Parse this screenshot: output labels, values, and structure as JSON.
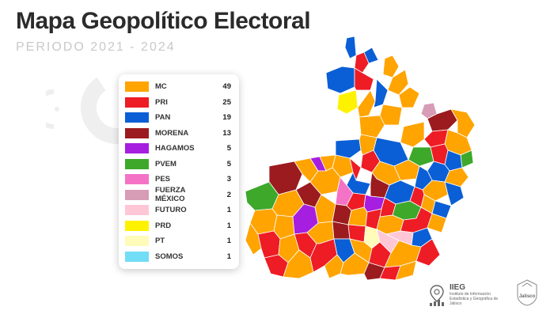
{
  "header": {
    "title": "Mapa Geopolítico Electoral",
    "subtitle": "PERIODO 2021 - 2024"
  },
  "legend": [
    {
      "label": "MC",
      "value": "49",
      "color": "#FFA400"
    },
    {
      "label": "PRI",
      "value": "25",
      "color": "#EE1C25"
    },
    {
      "label": "PAN",
      "value": "19",
      "color": "#0A5FD6"
    },
    {
      "label": "MORENA",
      "value": "13",
      "color": "#9B1B1E"
    },
    {
      "label": "HAGAMOS",
      "value": "5",
      "color": "#A61EE0"
    },
    {
      "label": "PVEM",
      "value": "5",
      "color": "#3DA82A"
    },
    {
      "label": "PES",
      "value": "3",
      "color": "#F573C6"
    },
    {
      "label": "FUERZA MÉXICO",
      "value": "2",
      "color": "#D79CB6"
    },
    {
      "label": "FUTURO",
      "value": "1",
      "color": "#FFC6D6"
    },
    {
      "label": "PRD",
      "value": "1",
      "color": "#FFF200"
    },
    {
      "label": "PT",
      "value": "1",
      "color": "#FFFBB8"
    },
    {
      "label": "SOMOS",
      "value": "1",
      "color": "#72DDF7"
    }
  ],
  "footer": {
    "institute_short": "IIEG",
    "institute_full": "Instituto de Información Estadística y Geográfica de Jalisco",
    "state_label": "Jalisco"
  }
}
